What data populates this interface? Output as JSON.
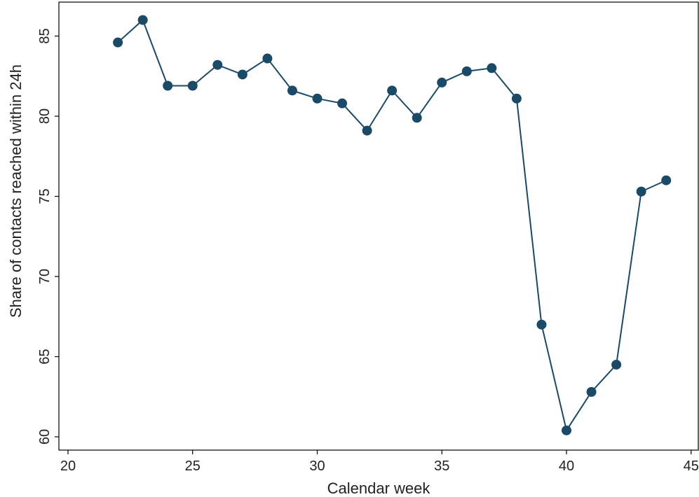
{
  "chart_data": {
    "type": "line",
    "title": "",
    "xlabel": "Calendar week",
    "ylabel": "Share of contacts reached within 24h",
    "xlim": [
      20,
      45
    ],
    "ylim": [
      60,
      86
    ],
    "x_ticks": [
      20,
      25,
      30,
      35,
      40,
      45
    ],
    "y_ticks": [
      60,
      65,
      70,
      75,
      80,
      85
    ],
    "grid": false,
    "colors": {
      "series": "#1a4a66",
      "axis": "#000000",
      "background": "#ffffff"
    },
    "series": [
      {
        "x": [
          22,
          23,
          24,
          25,
          26,
          27,
          28,
          29,
          30,
          31,
          32,
          33,
          34,
          35,
          36,
          37,
          38,
          39,
          40,
          41,
          42,
          43,
          44
        ],
        "y": [
          84.6,
          86.0,
          81.9,
          81.9,
          83.2,
          82.6,
          83.6,
          81.6,
          81.1,
          80.8,
          79.1,
          81.6,
          79.9,
          82.1,
          82.8,
          83.0,
          81.1,
          67.0,
          60.4,
          62.8,
          64.5,
          75.3,
          76.0
        ]
      }
    ]
  }
}
